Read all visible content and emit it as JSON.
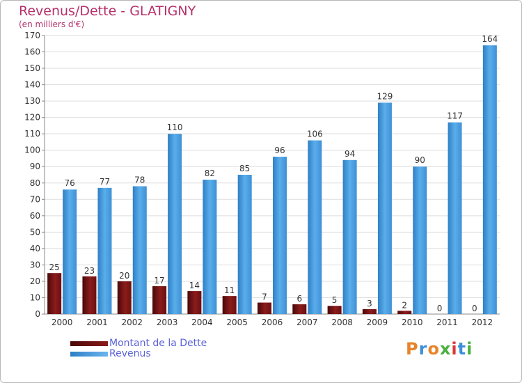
{
  "title": "Revenus/Dette - GLATIGNY",
  "subtitle": "(en milliers d'€)",
  "logo_text": "Proxiti",
  "colors": {
    "dette": "#7a1212",
    "revenus": "#4a9fe2",
    "title": "#b5306a",
    "legend_text": "#5b62d6"
  },
  "chart_data": {
    "type": "bar",
    "categories": [
      "2000",
      "2001",
      "2002",
      "2003",
      "2004",
      "2005",
      "2006",
      "2007",
      "2008",
      "2009",
      "2010",
      "2011",
      "2012"
    ],
    "series": [
      {
        "name": "Montant de la Dette",
        "values": [
          25,
          23,
          20,
          17,
          14,
          11,
          7,
          6,
          5,
          3,
          2,
          0,
          0
        ]
      },
      {
        "name": "Revenus",
        "values": [
          76,
          77,
          78,
          110,
          82,
          85,
          96,
          106,
          94,
          129,
          90,
          117,
          164
        ]
      }
    ],
    "ylim": [
      0,
      170
    ],
    "yticks": [
      0,
      10,
      20,
      30,
      40,
      50,
      60,
      70,
      80,
      90,
      100,
      110,
      120,
      130,
      140,
      150,
      160,
      170
    ],
    "grid": true,
    "legend_position": "bottom-left",
    "title": "Revenus/Dette - GLATIGNY"
  },
  "legend": [
    {
      "label": "Montant de la Dette"
    },
    {
      "label": "Revenus"
    }
  ]
}
